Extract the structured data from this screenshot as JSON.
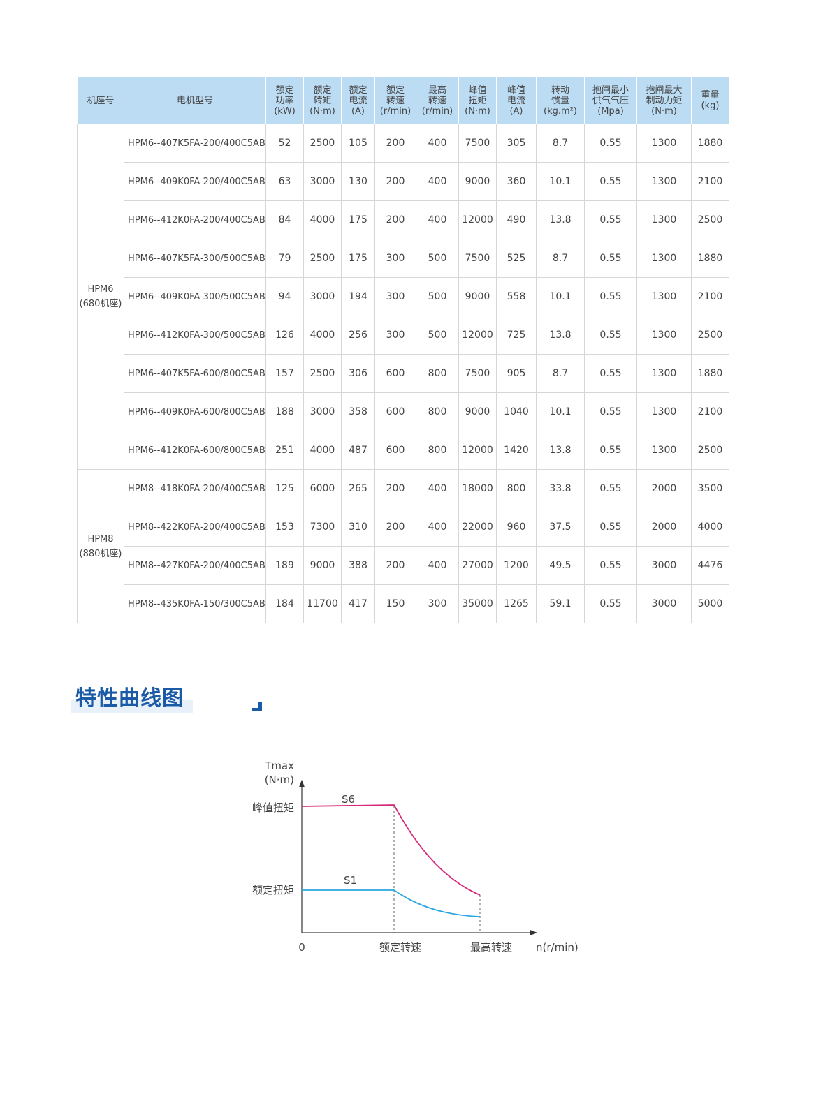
{
  "table": {
    "headers": [
      [
        "机座号"
      ],
      [
        "电机型号"
      ],
      [
        "额定",
        "功率",
        "(kW)"
      ],
      [
        "额定",
        "转矩",
        "(N·m)"
      ],
      [
        "额定",
        "电流",
        "(A)"
      ],
      [
        "额定",
        "转速",
        "(r/min)"
      ],
      [
        "最高",
        "转速",
        "(r/min)"
      ],
      [
        "峰值",
        "扭矩",
        "(N·m)"
      ],
      [
        "峰值",
        "电流",
        "(A)"
      ],
      [
        "转动",
        "惯量",
        "(kg.m²)"
      ],
      [
        "抱闸最小",
        "供气气压",
        "(Mpa)"
      ],
      [
        "抱闸最大",
        "制动力矩",
        "(N·m)"
      ],
      [
        "重量",
        "(kg)"
      ]
    ],
    "groups": [
      {
        "series": [
          "HPM6",
          "(680机座)"
        ],
        "rows": [
          [
            "HPM6--407K5FA-200/400C5AB",
            "52",
            "2500",
            "105",
            "200",
            "400",
            "7500",
            "305",
            "8.7",
            "0.55",
            "1300",
            "1880"
          ],
          [
            "HPM6--409K0FA-200/400C5AB",
            "63",
            "3000",
            "130",
            "200",
            "400",
            "9000",
            "360",
            "10.1",
            "0.55",
            "1300",
            "2100"
          ],
          [
            "HPM6--412K0FA-200/400C5AB",
            "84",
            "4000",
            "175",
            "200",
            "400",
            "12000",
            "490",
            "13.8",
            "0.55",
            "1300",
            "2500"
          ],
          [
            "HPM6--407K5FA-300/500C5AB",
            "79",
            "2500",
            "175",
            "300",
            "500",
            "7500",
            "525",
            "8.7",
            "0.55",
            "1300",
            "1880"
          ],
          [
            "HPM6--409K0FA-300/500C5AB",
            "94",
            "3000",
            "194",
            "300",
            "500",
            "9000",
            "558",
            "10.1",
            "0.55",
            "1300",
            "2100"
          ],
          [
            "HPM6--412K0FA-300/500C5AB",
            "126",
            "4000",
            "256",
            "300",
            "500",
            "12000",
            "725",
            "13.8",
            "0.55",
            "1300",
            "2500"
          ],
          [
            "HPM6--407K5FA-600/800C5AB",
            "157",
            "2500",
            "306",
            "600",
            "800",
            "7500",
            "905",
            "8.7",
            "0.55",
            "1300",
            "1880"
          ],
          [
            "HPM6--409K0FA-600/800C5AB",
            "188",
            "3000",
            "358",
            "600",
            "800",
            "9000",
            "1040",
            "10.1",
            "0.55",
            "1300",
            "2100"
          ],
          [
            "HPM6--412K0FA-600/800C5AB",
            "251",
            "4000",
            "487",
            "600",
            "800",
            "12000",
            "1420",
            "13.8",
            "0.55",
            "1300",
            "2500"
          ]
        ]
      },
      {
        "series": [
          "HPM8",
          "(880机座)"
        ],
        "rows": [
          [
            "HPM8--418K0FA-200/400C5AB",
            "125",
            "6000",
            "265",
            "200",
            "400",
            "18000",
            "800",
            "33.8",
            "0.55",
            "2000",
            "3500"
          ],
          [
            "HPM8--422K0FA-200/400C5AB",
            "153",
            "7300",
            "310",
            "200",
            "400",
            "22000",
            "960",
            "37.5",
            "0.55",
            "2000",
            "4000"
          ],
          [
            "HPM8--427K0FA-200/400C5AB",
            "189",
            "9000",
            "388",
            "200",
            "400",
            "27000",
            "1200",
            "49.5",
            "0.55",
            "3000",
            "4476"
          ],
          [
            "HPM8--435K0FA-150/300C5AB",
            "184",
            "11700",
            "417",
            "150",
            "300",
            "35000",
            "1265",
            "59.1",
            "0.55",
            "3000",
            "5000"
          ]
        ]
      }
    ]
  },
  "section_title": "特性曲线图",
  "diagram": {
    "y_label_1": "Tmax",
    "y_label_2": "(N·m)",
    "peak_label": "峰值扭矩",
    "rated_label": "额定扭矩",
    "origin": "0",
    "rated_speed_label": "额定转速",
    "max_speed_label": "最高转速",
    "x_label": "n(r/min)",
    "s6_label": "S6",
    "s1_label": "S1",
    "colors": {
      "s6": "#d6287a",
      "s1": "#2aa6e0",
      "header_bg": "#bcdcf4",
      "title": "#1a5aa6"
    }
  }
}
